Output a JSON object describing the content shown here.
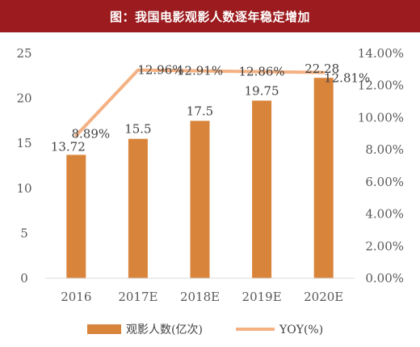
{
  "chart_data": {
    "type": "bar+line",
    "title": "图：我国电影观影人数逐年稳定增加",
    "categories": [
      "2016",
      "2017E",
      "2018E",
      "2019E",
      "2020E"
    ],
    "series": [
      {
        "name": "观影人数(亿次)",
        "type": "bar",
        "axis": "left",
        "values": [
          13.72,
          15.5,
          17.5,
          19.75,
          22.28
        ],
        "labels": [
          "13.72",
          "15.5",
          "17.5",
          "19.75",
          "22.28"
        ]
      },
      {
        "name": "YOY(%)",
        "type": "line",
        "axis": "right",
        "values": [
          8.89,
          12.96,
          12.91,
          12.86,
          12.81
        ],
        "labels": [
          "8.89%",
          "12.96%",
          "12.91%",
          "12.86%",
          "12.81%"
        ]
      }
    ],
    "left_axis": {
      "ylim": [
        0,
        25
      ],
      "ticks": [
        "0",
        "5",
        "10",
        "15",
        "20",
        "25"
      ]
    },
    "right_axis": {
      "ylim": [
        0,
        14
      ],
      "ticks": [
        "0.00%",
        "2.00%",
        "4.00%",
        "6.00%",
        "8.00%",
        "10.00%",
        "12.00%",
        "14.00%"
      ]
    },
    "grid": false,
    "legend": "bottom",
    "colors": {
      "bar": "#d9843b",
      "line": "#f4b183",
      "title_bg": "#9b1b1e"
    }
  }
}
